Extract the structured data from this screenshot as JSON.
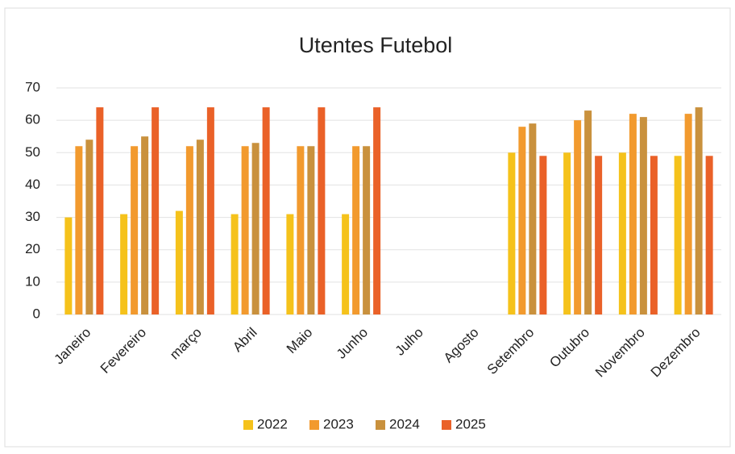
{
  "chart_data": {
    "type": "bar",
    "title": "Utentes Futebol",
    "categories": [
      "Janeiro",
      "Fevereiro",
      "março",
      "Abril",
      "Maio",
      "Junho",
      "Julho",
      "Agosto",
      "Setembro",
      "Outubro",
      "Novembro",
      "Dezembro"
    ],
    "series": [
      {
        "name": "2022",
        "color": "#f5c21b",
        "values": [
          30,
          31,
          32,
          31,
          31,
          31,
          null,
          null,
          50,
          50,
          50,
          49
        ]
      },
      {
        "name": "2023",
        "color": "#f29a2e",
        "values": [
          52,
          52,
          52,
          52,
          52,
          52,
          null,
          null,
          58,
          60,
          62,
          62
        ]
      },
      {
        "name": "2024",
        "color": "#c9913d",
        "values": [
          54,
          55,
          54,
          53,
          52,
          52,
          null,
          null,
          59,
          63,
          61,
          64
        ]
      },
      {
        "name": "2025",
        "color": "#ea6128",
        "values": [
          64,
          64,
          64,
          64,
          64,
          64,
          null,
          null,
          49,
          49,
          49,
          49
        ]
      }
    ],
    "ylim": [
      0,
      70
    ],
    "yticks": [
      0,
      10,
      20,
      30,
      40,
      50,
      60,
      70
    ],
    "grid": true,
    "legend": "bottom"
  }
}
